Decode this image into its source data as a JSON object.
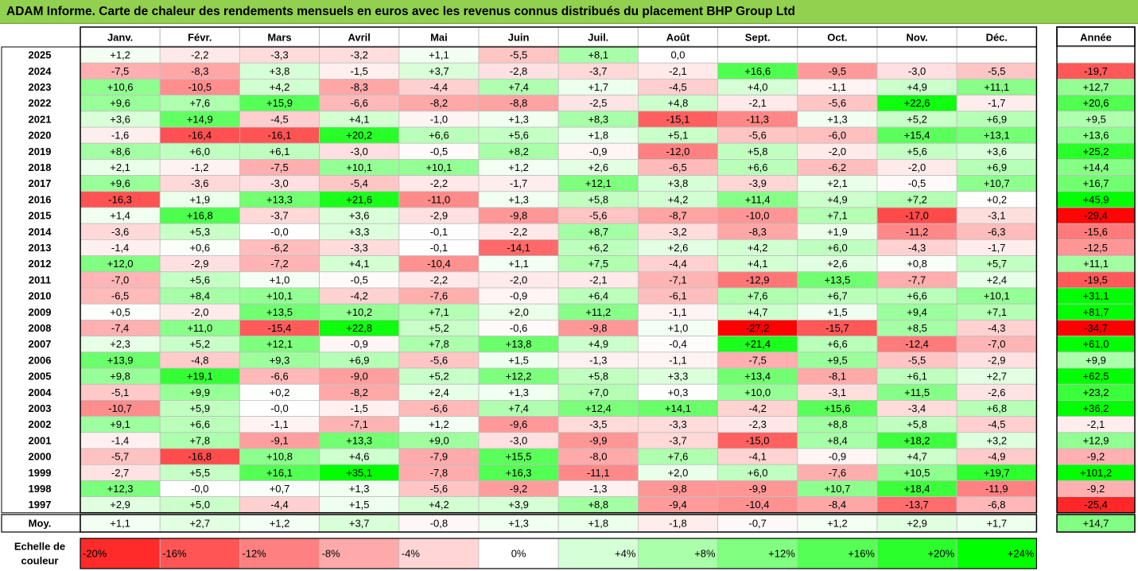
{
  "title": "ADAM Informe. Carte de chaleur des rendements mensuels en euros avec les revenus connus distribués du placement BHP Group Ltd",
  "chart_data": {
    "type": "heatmap",
    "months": [
      "Janv.",
      "Févr.",
      "Mars",
      "Avril",
      "Mai",
      "Juin",
      "Juil.",
      "Août",
      "Sept.",
      "Oct.",
      "Nov.",
      "Déc."
    ],
    "year_col_label": "Année",
    "rows": [
      {
        "label": "2025",
        "values": [
          "+1,2",
          "-2,2",
          "-3,3",
          "-3,2",
          "+1,1",
          "-5,5",
          "+8,1",
          "0,0",
          "",
          "",
          "",
          ""
        ],
        "year": ""
      },
      {
        "label": "2024",
        "values": [
          "-7,5",
          "-8,3",
          "+3,8",
          "-1,5",
          "+3,7",
          "-2,8",
          "-3,7",
          "-2,1",
          "+16,6",
          "-9,5",
          "-3,0",
          "-5,5"
        ],
        "year": "-19,7"
      },
      {
        "label": "2023",
        "values": [
          "+10,6",
          "-10,5",
          "+4,2",
          "-8,3",
          "-4,4",
          "+7,4",
          "+1,7",
          "-4,5",
          "+4,0",
          "-1,1",
          "+4,9",
          "+11,1"
        ],
        "year": "+12,7"
      },
      {
        "label": "2022",
        "values": [
          "+9,6",
          "+7,6",
          "+15,9",
          "-6,6",
          "-8,2",
          "-8,8",
          "-2,5",
          "+4,8",
          "-2,1",
          "-5,6",
          "+22,6",
          "-1,7"
        ],
        "year": "+20,6"
      },
      {
        "label": "2021",
        "values": [
          "+3,6",
          "+14,9",
          "-4,5",
          "+4,1",
          "-1,0",
          "+1,3",
          "+8,3",
          "-15,1",
          "-11,3",
          "+1,3",
          "+5,2",
          "+6,9"
        ],
        "year": "+9,5"
      },
      {
        "label": "2020",
        "values": [
          "-1,6",
          "-16,4",
          "-16,1",
          "+20,2",
          "+6,6",
          "+5,6",
          "+1,8",
          "+5,1",
          "-5,6",
          "-6,0",
          "+15,4",
          "+13,1"
        ],
        "year": "+13,6"
      },
      {
        "label": "2019",
        "values": [
          "+8,6",
          "+6,0",
          "+6,1",
          "-3,0",
          "-0,5",
          "+8,2",
          "-0,9",
          "-12,0",
          "+5,8",
          "-2,0",
          "+5,6",
          "+3,6"
        ],
        "year": "+25,2"
      },
      {
        "label": "2018",
        "values": [
          "+2,1",
          "-1,2",
          "-7,5",
          "+10,1",
          "+10,1",
          "+1,2",
          "+2,6",
          "-6,5",
          "+6,6",
          "-6,2",
          "-2,0",
          "+6,9"
        ],
        "year": "+14,4"
      },
      {
        "label": "2017",
        "values": [
          "+9,6",
          "-3,6",
          "-3,0",
          "-5,4",
          "-2,2",
          "-1,7",
          "+12,1",
          "+3,8",
          "-3,9",
          "+2,1",
          "-0,5",
          "+10,7"
        ],
        "year": "+16,7"
      },
      {
        "label": "2016",
        "values": [
          "-16,3",
          "+1,9",
          "+13,3",
          "+21,6",
          "-11,0",
          "+1,3",
          "+5,8",
          "+4,2",
          "+11,4",
          "+4,9",
          "+7,2",
          "+0,2"
        ],
        "year": "+45,9"
      },
      {
        "label": "2015",
        "values": [
          "+1,4",
          "+16,8",
          "-3,7",
          "+3,6",
          "-2,9",
          "-9,8",
          "-5,6",
          "-8,7",
          "-10,0",
          "+7,1",
          "-17,0",
          "-3,1"
        ],
        "year": "-29,4"
      },
      {
        "label": "2014",
        "values": [
          "-3,6",
          "+5,3",
          "-0,0",
          "+3,3",
          "-0,1",
          "-2,2",
          "+8,7",
          "-3,2",
          "-8,3",
          "+1,9",
          "-11,2",
          "-6,3"
        ],
        "year": "-15,6"
      },
      {
        "label": "2013",
        "values": [
          "-1,4",
          "+0,6",
          "-6,2",
          "-3,3",
          "-0,1",
          "-14,1",
          "+6,2",
          "+2,6",
          "+4,2",
          "+6,0",
          "-4,3",
          "-1,7"
        ],
        "year": "-12,5"
      },
      {
        "label": "2012",
        "values": [
          "+12,0",
          "-2,9",
          "-7,2",
          "+4,1",
          "-10,4",
          "+1,1",
          "+7,5",
          "-4,4",
          "+4,1",
          "+2,6",
          "+0,8",
          "+5,7"
        ],
        "year": "+11,1"
      },
      {
        "label": "2011",
        "values": [
          "-7,0",
          "+5,6",
          "+1,0",
          "-0,5",
          "-2,2",
          "-2,0",
          "-2,1",
          "-7,1",
          "-12,9",
          "+13,5",
          "-7,7",
          "+2,4"
        ],
        "year": "-19,5"
      },
      {
        "label": "2010",
        "values": [
          "-6,5",
          "+8,4",
          "+10,1",
          "-4,2",
          "-7,6",
          "-0,9",
          "+6,4",
          "-6,1",
          "+7,6",
          "+6,7",
          "+6,6",
          "+10,1"
        ],
        "year": "+31,1"
      },
      {
        "label": "2009",
        "values": [
          "+0,5",
          "-2,0",
          "+13,5",
          "+10,2",
          "+7,1",
          "+2,0",
          "+11,2",
          "-1,1",
          "+4,7",
          "+1,5",
          "+9,4",
          "+7,1"
        ],
        "year": "+81,7"
      },
      {
        "label": "2008",
        "values": [
          "-7,4",
          "+11,0",
          "-15,4",
          "+22,8",
          "+5,2",
          "-0,6",
          "-9,8",
          "+1,0",
          "-27,2",
          "-15,7",
          "+8,5",
          "-4,3"
        ],
        "year": "-34,7"
      },
      {
        "label": "2007",
        "values": [
          "+2,3",
          "+5,2",
          "+12,1",
          "-0,9",
          "+7,8",
          "+13,8",
          "+4,9",
          "-0,4",
          "+21,4",
          "+6,6",
          "-12,4",
          "-7,0"
        ],
        "year": "+61,0"
      },
      {
        "label": "2006",
        "values": [
          "+13,9",
          "-4,8",
          "+9,3",
          "+6,9",
          "-5,6",
          "+1,5",
          "-1,3",
          "-1,1",
          "-7,5",
          "+9,5",
          "-5,5",
          "-2,9"
        ],
        "year": "+9,9"
      },
      {
        "label": "2005",
        "values": [
          "+9,8",
          "+19,1",
          "-6,6",
          "-9,0",
          "+5,2",
          "+12,2",
          "+5,8",
          "+3,3",
          "+13,4",
          "-8,1",
          "+6,1",
          "+2,7"
        ],
        "year": "+62,5"
      },
      {
        "label": "2004",
        "values": [
          "-5,1",
          "+9,9",
          "+0,2",
          "-8,2",
          "+2,4",
          "+1,3",
          "+7,0",
          "+0,3",
          "+10,0",
          "-3,1",
          "+11,5",
          "-2,6"
        ],
        "year": "+23,2"
      },
      {
        "label": "2003",
        "values": [
          "-10,7",
          "+5,9",
          "-0,0",
          "-1,5",
          "-6,6",
          "+7,4",
          "+12,4",
          "+14,1",
          "-4,2",
          "+15,6",
          "-3,4",
          "+6,8"
        ],
        "year": "+36,2"
      },
      {
        "label": "2002",
        "values": [
          "+9,1",
          "+6,6",
          "-1,1",
          "-7,1",
          "+1,2",
          "-9,6",
          "-3,5",
          "-3,3",
          "-2,3",
          "+8,8",
          "+5,8",
          "-4,5"
        ],
        "year": "-2,1"
      },
      {
        "label": "2001",
        "values": [
          "-1,4",
          "+7,8",
          "-9,1",
          "+13,3",
          "+9,0",
          "-3,0",
          "-9,9",
          "-3,7",
          "-15,0",
          "+8,4",
          "+18,2",
          "+3,2"
        ],
        "year": "+12,9"
      },
      {
        "label": "2000",
        "values": [
          "-5,7",
          "-16,8",
          "+10,8",
          "+4,6",
          "-7,9",
          "+15,5",
          "-8,0",
          "+7,6",
          "-4,1",
          "-0,9",
          "+4,7",
          "-4,9"
        ],
        "year": "-9,2"
      },
      {
        "label": "1999",
        "values": [
          "-2,7",
          "+5,5",
          "+16,1",
          "+35,1",
          "-7,8",
          "+16,3",
          "-11,1",
          "+2,0",
          "+6,0",
          "-7,6",
          "+10,5",
          "+19,7"
        ],
        "year": "+101,2"
      },
      {
        "label": "1998",
        "values": [
          "+12,3",
          "-0,0",
          "+0,7",
          "+1,3",
          "-5,6",
          "-9,2",
          "-1,3",
          "-9,8",
          "-9,9",
          "+10,7",
          "+18,4",
          "-11,9"
        ],
        "year": "-9,2"
      },
      {
        "label": "1997",
        "values": [
          "+2,9",
          "+5,0",
          "-4,4",
          "+1,5",
          "+4,2",
          "+3,9",
          "+8,8",
          "-9,4",
          "-10,4",
          "-8,4",
          "-13,7",
          "-6,8"
        ],
        "year": "-25,4"
      }
    ],
    "average_row": {
      "label": "Moy.",
      "values": [
        "+1,1",
        "+2,7",
        "+1,2",
        "+3,7",
        "-0,8",
        "+1,3",
        "+1,8",
        "-1,8",
        "-0,7",
        "+1,2",
        "+2,9",
        "+1,7"
      ],
      "year": "+14,7"
    },
    "scale": {
      "label_line1": "Echelle de",
      "label_line2": "couleur",
      "stops": [
        {
          "label": "-20%",
          "value": -20
        },
        {
          "label": "-16%",
          "value": -16
        },
        {
          "label": "-12%",
          "value": -12
        },
        {
          "label": "-8%",
          "value": -8
        },
        {
          "label": "-4%",
          "value": -4
        },
        {
          "label": "0%",
          "value": 0
        },
        {
          "label": "+4%",
          "value": 4
        },
        {
          "label": "+8%",
          "value": 8
        },
        {
          "label": "+12%",
          "value": 12
        },
        {
          "label": "+16%",
          "value": 16
        },
        {
          "label": "+20%",
          "value": 20
        },
        {
          "label": "+24%",
          "value": 24
        }
      ]
    },
    "colors": {
      "negative_max": "#ff0000",
      "neutral": "#ffffff",
      "positive_max": "#00ff00",
      "header_bg": "#92d050",
      "grid_line": "#bfbfbf",
      "border": "#000000"
    }
  }
}
